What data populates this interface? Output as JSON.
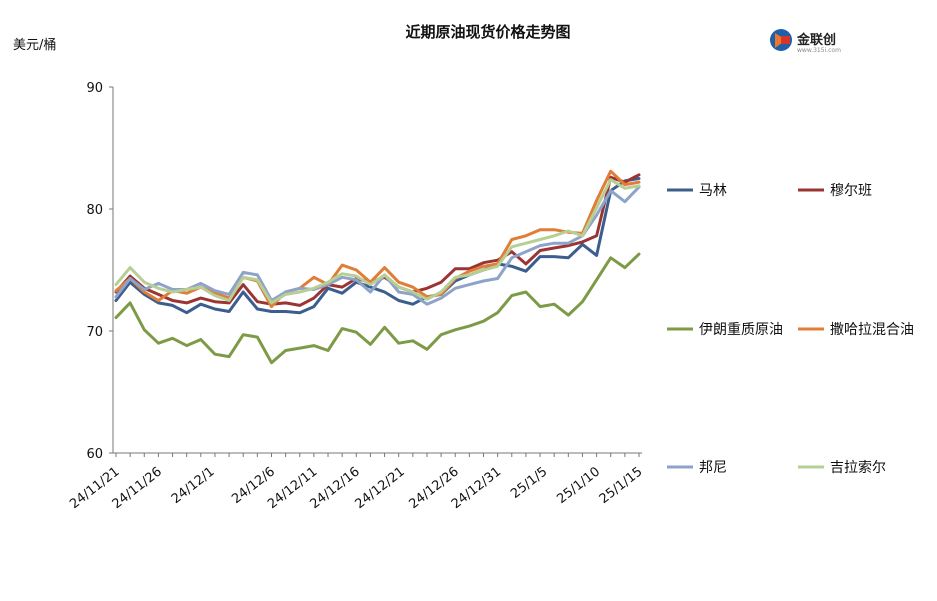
{
  "chart_data": {
    "type": "line",
    "title": "近期原油现货价格走势图",
    "ylabel": "美元/桶",
    "ylim": [
      60,
      90
    ],
    "yticks": [
      60,
      70,
      80,
      90
    ],
    "x_tick_labels": [
      "24/11/21",
      "24/11/26",
      "24/12/1",
      "24/12/6",
      "24/12/11",
      "24/12/16",
      "24/12/21",
      "24/12/26",
      "24/12/31",
      "25/1/5",
      "25/1/10",
      "25/1/15"
    ],
    "x": [
      "24/11/21",
      "24/11/22",
      "24/11/25",
      "24/11/26",
      "24/11/27",
      "24/11/28",
      "24/11/29",
      "24/12/2",
      "24/12/3",
      "24/12/4",
      "24/12/5",
      "24/12/6",
      "24/12/9",
      "24/12/10",
      "24/12/11",
      "24/12/12",
      "24/12/13",
      "24/12/16",
      "24/12/17",
      "24/12/18",
      "24/12/19",
      "24/12/20",
      "24/12/23",
      "24/12/24",
      "24/12/26",
      "24/12/27",
      "24/12/30",
      "24/12/31",
      "25/1/2",
      "25/1/3",
      "25/1/6",
      "25/1/7",
      "25/1/8",
      "25/1/9",
      "25/1/10",
      "25/1/13",
      "25/1/14",
      "25/1/15"
    ],
    "series": [
      {
        "name": "马林",
        "color": "#3c5e8f",
        "values": [
          72.5,
          74.0,
          73.0,
          72.3,
          72.1,
          71.5,
          72.2,
          71.8,
          71.6,
          73.2,
          71.8,
          71.6,
          71.6,
          71.5,
          72.0,
          73.5,
          73.1,
          74.0,
          73.6,
          73.2,
          72.5,
          72.2,
          72.8,
          73.0,
          74.1,
          74.6,
          75.0,
          75.5,
          75.3,
          74.9,
          76.1,
          76.1,
          76.0,
          77.1,
          76.2,
          81.5,
          82.3,
          82.5
        ]
      },
      {
        "name": "穆尔班",
        "color": "#9b3534",
        "values": [
          73.2,
          74.5,
          73.5,
          73.0,
          72.5,
          72.3,
          72.7,
          72.4,
          72.3,
          73.8,
          72.4,
          72.2,
          72.3,
          72.1,
          72.7,
          73.8,
          73.6,
          74.3,
          74.0,
          74.4,
          73.6,
          73.2,
          73.5,
          74.0,
          75.1,
          75.1,
          75.6,
          75.8,
          76.5,
          75.5,
          76.6,
          76.8,
          77.0,
          77.3,
          77.8,
          82.6,
          82.2,
          82.8
        ]
      },
      {
        "name": "伊朗重质原油",
        "color": "#7d9a47",
        "values": [
          71.1,
          72.3,
          70.1,
          69.0,
          69.4,
          68.8,
          69.3,
          68.1,
          67.9,
          69.7,
          69.5,
          67.4,
          68.4,
          68.6,
          68.8,
          68.4,
          70.2,
          69.9,
          68.9,
          70.3,
          69.0,
          69.2,
          68.5,
          69.7,
          70.1,
          70.4,
          70.8,
          71.5,
          72.9,
          73.2,
          72.0,
          72.2,
          71.3,
          72.4,
          74.2,
          76.0,
          75.2,
          76.3
        ]
      },
      {
        "name": "撒哈拉混合油",
        "color": "#e07d36",
        "values": [
          73.3,
          74.3,
          73.2,
          72.5,
          73.3,
          73.1,
          73.6,
          73.1,
          72.7,
          74.4,
          74.1,
          72.0,
          73.2,
          73.5,
          74.4,
          73.8,
          75.4,
          75.0,
          74.0,
          75.2,
          74.0,
          73.6,
          72.8,
          73.0,
          74.3,
          74.9,
          75.3,
          75.5,
          77.5,
          77.8,
          78.3,
          78.3,
          78.1,
          78.0,
          80.7,
          83.1,
          82.0,
          82.2
        ]
      },
      {
        "name": "邦尼",
        "color": "#8ea3c9",
        "values": [
          72.8,
          74.3,
          73.4,
          73.9,
          73.4,
          73.4,
          73.9,
          73.3,
          73.0,
          74.8,
          74.6,
          72.5,
          73.2,
          73.5,
          73.4,
          73.8,
          74.4,
          74.2,
          73.2,
          74.6,
          73.2,
          73.0,
          72.2,
          72.7,
          73.5,
          73.8,
          74.1,
          74.3,
          76.0,
          76.5,
          77.0,
          77.2,
          77.2,
          77.8,
          79.5,
          81.5,
          80.6,
          81.8
        ]
      },
      {
        "name": "吉拉索尔",
        "color": "#b7cf94",
        "values": [
          73.8,
          75.2,
          74.0,
          73.5,
          73.2,
          73.4,
          73.6,
          72.9,
          72.5,
          74.4,
          74.2,
          72.3,
          73.0,
          73.2,
          73.5,
          74.0,
          74.7,
          74.5,
          73.8,
          74.6,
          73.6,
          73.2,
          72.6,
          73.2,
          74.4,
          74.6,
          75.0,
          75.3,
          76.9,
          77.2,
          77.5,
          77.8,
          78.2,
          77.8,
          80.1,
          82.4,
          81.7,
          81.9
        ]
      }
    ],
    "legend_position": "right",
    "grid": false
  },
  "logo": {
    "text": "金联创"
  }
}
